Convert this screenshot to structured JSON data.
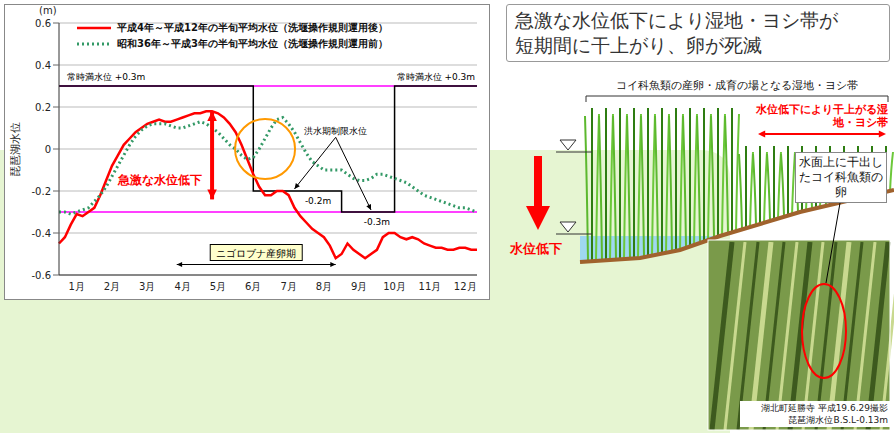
{
  "chart_data": {
    "type": "line",
    "y_label": "琵琶湖水位",
    "y_unit": "(m)",
    "categories": [
      null,
      null,
      null,
      "1月",
      null,
      null,
      null,
      null,
      null,
      "2月",
      null,
      null,
      null,
      null,
      null,
      "3月",
      null,
      null,
      null,
      null,
      null,
      "4月",
      null,
      null,
      null,
      null,
      null,
      "5月",
      null,
      null,
      null,
      null,
      null,
      "6月",
      null,
      null,
      null,
      null,
      null,
      "7月",
      null,
      null,
      null,
      null,
      null,
      "8月",
      null,
      null,
      null,
      null,
      null,
      "9月",
      null,
      null,
      null,
      null,
      null,
      "10月",
      null,
      null,
      null,
      null,
      null,
      "11月",
      null,
      null,
      null,
      null,
      null,
      "12月",
      null,
      null
    ],
    "series": [
      {
        "name": "平成4年～平成12年の半旬平均水位（洗堰操作規則運用後）",
        "color": "#ff0000",
        "line_style": "solid",
        "values": [
          -0.45,
          -0.42,
          -0.36,
          -0.31,
          -0.32,
          -0.3,
          -0.28,
          -0.22,
          -0.15,
          -0.08,
          -0.03,
          0.02,
          0.05,
          0.08,
          0.1,
          0.12,
          0.13,
          0.14,
          0.13,
          0.13,
          0.14,
          0.15,
          0.16,
          0.17,
          0.17,
          0.18,
          0.18,
          0.17,
          0.15,
          0.12,
          0.08,
          0.02,
          -0.05,
          -0.12,
          -0.18,
          -0.22,
          -0.22,
          -0.2,
          -0.2,
          -0.22,
          -0.28,
          -0.32,
          -0.35,
          -0.38,
          -0.4,
          -0.42,
          -0.46,
          -0.52,
          -0.5,
          -0.45,
          -0.48,
          -0.5,
          -0.52,
          -0.5,
          -0.48,
          -0.42,
          -0.4,
          -0.4,
          -0.42,
          -0.43,
          -0.42,
          -0.43,
          -0.45,
          -0.46,
          -0.47,
          -0.47,
          -0.48,
          -0.48,
          -0.47,
          -0.47,
          -0.48,
          -0.48
        ]
      },
      {
        "name": "昭和36年～平成3年の半旬平均水位（洗堰操作規則運用前）",
        "color": "#339966",
        "line_style": "dotted",
        "values": [
          -0.3,
          -0.3,
          -0.31,
          -0.3,
          -0.29,
          -0.28,
          -0.25,
          -0.22,
          -0.18,
          -0.13,
          -0.08,
          -0.03,
          0.02,
          0.06,
          0.09,
          0.11,
          0.12,
          0.12,
          0.12,
          0.11,
          0.1,
          0.1,
          0.11,
          0.12,
          0.13,
          0.12,
          0.1,
          0.08,
          0.05,
          0.02,
          0.0,
          -0.03,
          -0.05,
          -0.04,
          0.0,
          0.05,
          0.1,
          0.14,
          0.15,
          0.12,
          0.08,
          0.03,
          -0.02,
          -0.06,
          -0.08,
          -0.1,
          -0.1,
          -0.1,
          -0.1,
          -0.12,
          -0.14,
          -0.15,
          -0.15,
          -0.14,
          -0.12,
          -0.12,
          -0.13,
          -0.14,
          -0.15,
          -0.16,
          -0.18,
          -0.2,
          -0.22,
          -0.23,
          -0.24,
          -0.25,
          -0.26,
          -0.27,
          -0.28,
          -0.28,
          -0.29,
          -0.3
        ]
      }
    ],
    "limit_levels": {
      "color": "#000000",
      "line_style": "step",
      "values": [
        0.3,
        0.3,
        0.3,
        0.3,
        0.3,
        0.3,
        0.3,
        0.3,
        0.3,
        0.3,
        0.3,
        0.3,
        0.3,
        0.3,
        0.3,
        0.3,
        0.3,
        0.3,
        0.3,
        0.3,
        0.3,
        0.3,
        0.3,
        0.3,
        0.3,
        0.3,
        0.3,
        0.3,
        0.3,
        0.3,
        0.3,
        0.3,
        0.3,
        -0.2,
        -0.2,
        -0.2,
        -0.2,
        -0.2,
        -0.2,
        -0.2,
        -0.2,
        -0.2,
        -0.2,
        -0.2,
        -0.2,
        -0.2,
        -0.2,
        -0.2,
        -0.3,
        -0.3,
        -0.3,
        -0.3,
        -0.3,
        -0.3,
        -0.3,
        -0.3,
        -0.3,
        0.3,
        0.3,
        0.3,
        0.3,
        0.3,
        0.3,
        0.3,
        0.3,
        0.3,
        0.3,
        0.3,
        0.3,
        0.3,
        0.3,
        0.3
      ]
    },
    "reference_lines": [
      {
        "value": 0.3,
        "color": "#ff00ff"
      },
      {
        "value": -0.3,
        "color": "#ff00ff"
      }
    ],
    "ylim": [
      -0.6,
      0.6
    ],
    "yticks": [
      -0.6,
      -0.4,
      -0.2,
      0,
      0.2,
      0.4,
      0.6
    ],
    "grid": true,
    "legend": "top",
    "annotations": {
      "rule_labels": [
        {
          "text": "常時満水位 +0.3m",
          "x": 8,
          "y": 0.33
        },
        {
          "text": "常時満水位 +0.3m",
          "x": 64,
          "y": 0.33
        },
        {
          "text": "-0.2m",
          "x": 44,
          "y": -0.26
        },
        {
          "text": "-0.3m",
          "x": 54,
          "y": -0.36
        }
      ],
      "flood_label": {
        "text": "洪水期制限水位",
        "x": 47,
        "y": 0.07,
        "points": [
          {
            "x": 40,
            "y": -0.19
          },
          {
            "x": 53,
            "y": -0.29
          }
        ]
      },
      "drop": {
        "text": "急激な水位低下",
        "x": 26,
        "from": 0.18,
        "to": -0.24,
        "color": "#ff0000"
      },
      "spawning": {
        "text": "ニゴロブナ産卵期",
        "start": 20,
        "end": 47,
        "y": -0.55
      },
      "highlight": {
        "x": 35,
        "y": 0,
        "color": "#ff9900"
      }
    }
  },
  "diagram": {
    "title": "急激な水位低下により湿地・ヨシ帯が短期間に干上がり、卵が死滅",
    "zone_label": "コイ科魚類の産卵・成育の場となる湿地・ヨシ帯",
    "dry_zone_label": "水位低下により干上がる湿地・ヨシ帯",
    "drop_label": "水位低下",
    "egg_callout": "水面上に干出したコイ科魚類の卵",
    "photo_caption": [
      "湖北町延勝寺 平成19.6.29撮影",
      "琵琶湖水位B.S.L-0.13m"
    ]
  }
}
